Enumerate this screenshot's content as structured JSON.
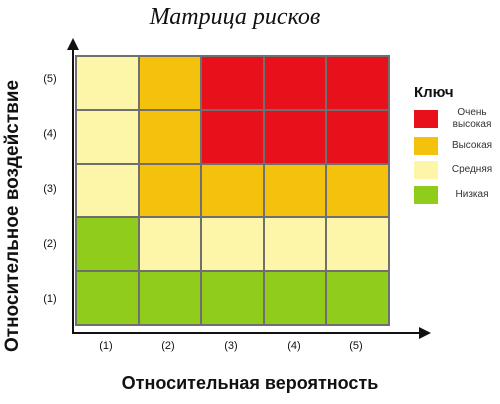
{
  "title": "Матрица рисков",
  "y_axis_label": "Относительное воздействие",
  "x_axis_label": "Относительная вероятность",
  "y_ticks": [
    "(5)",
    "(4)",
    "(3)",
    "(2)",
    "(1)"
  ],
  "x_ticks": [
    "(1)",
    "(2)",
    "(3)",
    "(4)",
    "(5)"
  ],
  "colors": {
    "very_high": "#e8101a",
    "high": "#f4c20d",
    "medium": "#fdf6a8",
    "low": "#8fcc1c"
  },
  "matrix_rows_top_to_bottom": [
    [
      "medium",
      "high",
      "very_high",
      "very_high",
      "very_high"
    ],
    [
      "medium",
      "high",
      "very_high",
      "very_high",
      "very_high"
    ],
    [
      "medium",
      "high",
      "high",
      "high",
      "high"
    ],
    [
      "low",
      "medium",
      "medium",
      "medium",
      "medium"
    ],
    [
      "low",
      "low",
      "low",
      "low",
      "low"
    ]
  ],
  "key": {
    "title": "Ключ",
    "items": [
      {
        "level": "very_high",
        "label": "Очень высокая"
      },
      {
        "level": "high",
        "label": "Высокая"
      },
      {
        "level": "medium",
        "label": "Средняя"
      },
      {
        "level": "low",
        "label": "Низкая"
      }
    ]
  }
}
